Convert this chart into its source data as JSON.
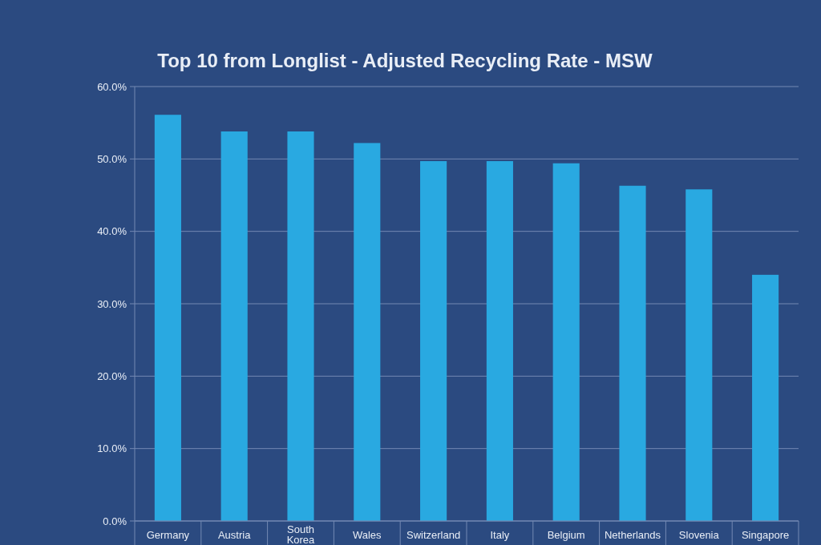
{
  "chart_data": {
    "type": "bar",
    "title": "Top 10 from Longlist - Adjusted Recycling Rate - MSW",
    "categories": [
      "Germany",
      "Austria",
      "South Korea",
      "Wales",
      "Switzerland",
      "Italy",
      "Belgium",
      "Netherlands",
      "Slovenia",
      "Singapore"
    ],
    "values": [
      56.1,
      53.8,
      53.8,
      52.2,
      49.7,
      49.7,
      49.4,
      46.3,
      45.8,
      34.0
    ],
    "color": "#29a9e1",
    "ylim": [
      0,
      60
    ],
    "yticks": [
      {
        "value": 0,
        "label": "0.0%"
      },
      {
        "value": 10,
        "label": "10.0%"
      },
      {
        "value": 20,
        "label": "20.0%"
      },
      {
        "value": 30,
        "label": "30.0%"
      },
      {
        "value": 40,
        "label": "40.0%"
      },
      {
        "value": 50,
        "label": "50.0%"
      },
      {
        "value": 60,
        "label": "60.0%"
      }
    ],
    "grid": "y"
  }
}
